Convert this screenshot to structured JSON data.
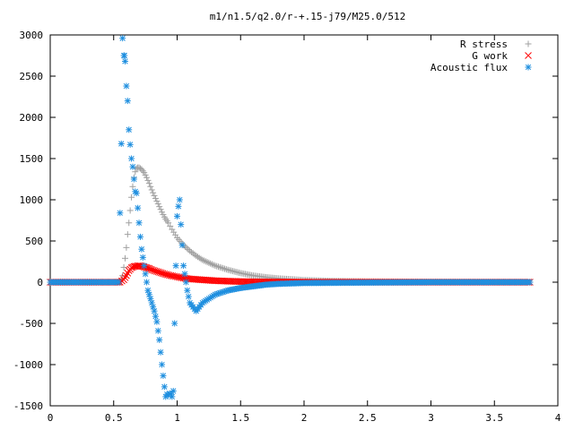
{
  "chart_data": {
    "type": "scatter",
    "title": "m1/n1.5/q2.0/r-+.15-j79/M25.0/512",
    "xlabel": "",
    "ylabel": "",
    "xlim": [
      0,
      4
    ],
    "ylim": [
      -1500,
      3000
    ],
    "xticks": [
      "0",
      "0.5",
      "1",
      "1.5",
      "2",
      "2.5",
      "3",
      "3.5",
      "4"
    ],
    "yticks": [
      "-1500",
      "-1000",
      "-500",
      "0",
      "500",
      "1000",
      "1500",
      "2000",
      "2500",
      "3000"
    ],
    "grid": false,
    "legend_position": "top-right",
    "series": [
      {
        "name": "R stress",
        "marker": "plus",
        "color": "#a0a0a0",
        "x": [
          0.0,
          0.2,
          0.4,
          0.5,
          0.55,
          0.57,
          0.58,
          0.59,
          0.6,
          0.61,
          0.62,
          0.63,
          0.64,
          0.65,
          0.66,
          0.67,
          0.68,
          0.69,
          0.7,
          0.72,
          0.74,
          0.76,
          0.78,
          0.8,
          0.82,
          0.85,
          0.88,
          0.9,
          0.93,
          0.96,
          1.0,
          1.05,
          1.1,
          1.15,
          1.2,
          1.3,
          1.4,
          1.5,
          1.6,
          1.7,
          1.8,
          1.9,
          2.0,
          2.2,
          2.5,
          3.0,
          3.5,
          3.78
        ],
        "y": [
          0,
          0,
          0,
          0,
          0,
          80,
          180,
          290,
          420,
          580,
          720,
          870,
          1030,
          1160,
          1270,
          1340,
          1380,
          1390,
          1390,
          1370,
          1330,
          1270,
          1200,
          1120,
          1050,
          950,
          850,
          790,
          720,
          640,
          540,
          450,
          380,
          320,
          270,
          200,
          150,
          110,
          80,
          60,
          45,
          35,
          25,
          15,
          8,
          4,
          2,
          1
        ]
      },
      {
        "name": "G work",
        "marker": "cross",
        "color": "#ff0000",
        "x": [
          0.0,
          0.2,
          0.4,
          0.5,
          0.55,
          0.58,
          0.6,
          0.62,
          0.64,
          0.66,
          0.68,
          0.7,
          0.72,
          0.74,
          0.76,
          0.78,
          0.8,
          0.85,
          0.9,
          0.95,
          1.0,
          1.05,
          1.1,
          1.2,
          1.3,
          1.4,
          1.5,
          1.6,
          1.8,
          2.0,
          2.5,
          3.0,
          3.5,
          3.78
        ],
        "y": [
          0,
          0,
          0,
          0,
          0,
          30,
          80,
          140,
          175,
          190,
          195,
          200,
          195,
          185,
          175,
          165,
          150,
          125,
          100,
          80,
          65,
          50,
          40,
          28,
          18,
          12,
          8,
          5,
          3,
          1,
          0,
          0,
          0,
          0
        ]
      },
      {
        "name": "Acoustic flux",
        "marker": "star",
        "color": "#1f8fdf",
        "x": [
          0.0,
          0.1,
          0.2,
          0.3,
          0.4,
          0.5,
          0.54,
          0.56,
          0.57,
          0.58,
          0.585,
          0.59,
          0.6,
          0.61,
          0.62,
          0.63,
          0.64,
          0.65,
          0.66,
          0.67,
          0.68,
          0.69,
          0.7,
          0.71,
          0.72,
          0.73,
          0.74,
          0.75,
          0.76,
          0.77,
          0.78,
          0.8,
          0.82,
          0.84,
          0.86,
          0.88,
          0.9,
          0.91,
          0.92,
          0.93,
          0.94,
          0.95,
          0.96,
          0.97,
          0.98,
          0.99,
          1.0,
          1.01,
          1.02,
          1.03,
          1.04,
          1.05,
          1.06,
          1.08,
          1.1,
          1.15,
          1.2,
          1.3,
          1.4,
          1.5,
          1.6,
          1.7,
          1.8,
          2.0,
          2.5,
          3.0,
          3.5,
          3.78
        ],
        "y": [
          0,
          0,
          0,
          0,
          0,
          0,
          0,
          1680,
          2960,
          2750,
          2750,
          2680,
          2380,
          2200,
          1850,
          1670,
          1500,
          1400,
          1250,
          1100,
          1080,
          900,
          720,
          550,
          400,
          300,
          200,
          100,
          0,
          -100,
          -150,
          -250,
          -350,
          -480,
          -700,
          -1000,
          -1270,
          -1390,
          -1360,
          -1370,
          -1350,
          -1360,
          -1390,
          -1320,
          -500,
          200,
          800,
          920,
          1000,
          700,
          450,
          200,
          100,
          -100,
          -250,
          -350,
          -250,
          -150,
          -100,
          -70,
          -50,
          -30,
          -20,
          -10,
          -5,
          0,
          0,
          0
        ]
      }
    ]
  }
}
